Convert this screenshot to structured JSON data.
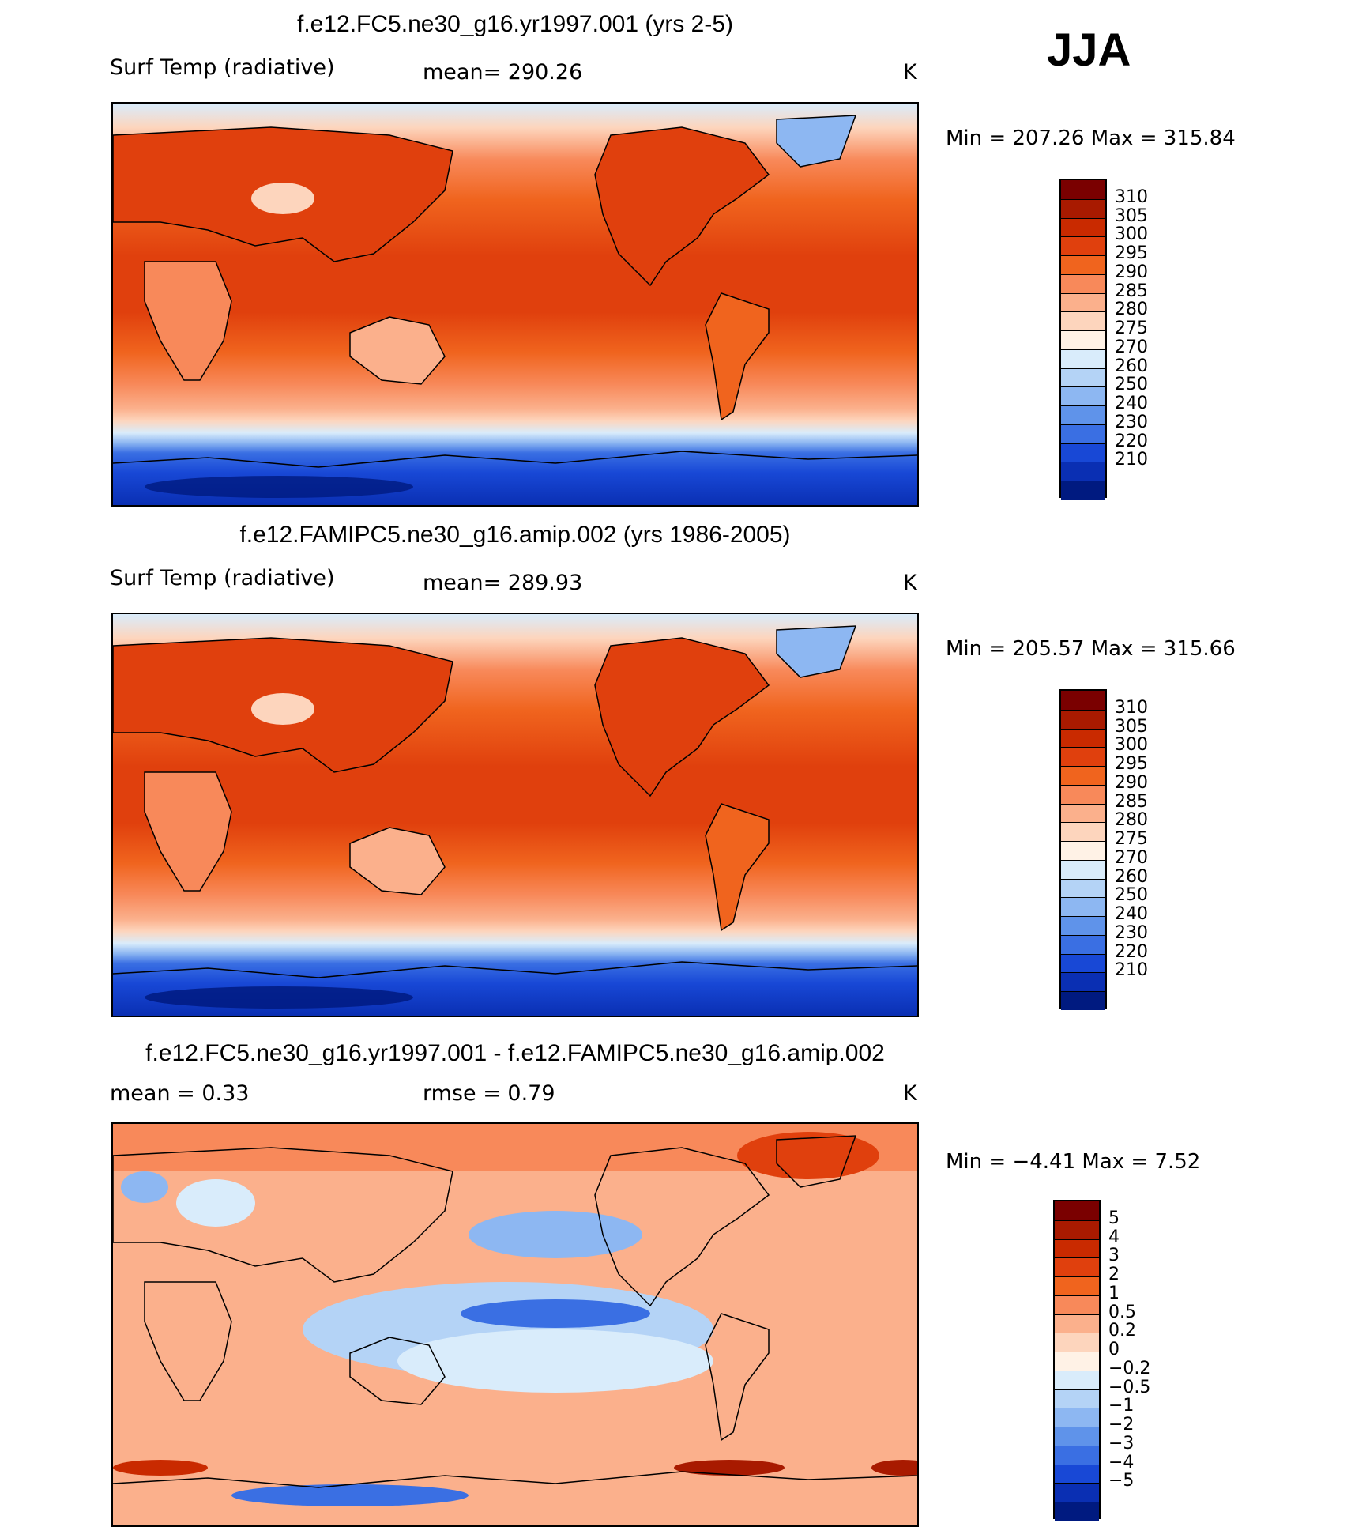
{
  "season": "JJA",
  "chart_data": [
    {
      "type": "heatmap",
      "title": "f.e12.FC5.ne30_g16.yr1997.001 (yrs 2-5)",
      "variable": "Surf Temp (radiative)",
      "stat_text": "mean= 290.26",
      "units": "K",
      "mean": 290.26,
      "min": 207.26,
      "max": 315.84,
      "minmax_text": "Min  =  207.26  Max  =  315.84",
      "levels": [
        "310",
        "305",
        "300",
        "295",
        "290",
        "285",
        "280",
        "275",
        "270",
        "260",
        "250",
        "240",
        "230",
        "220",
        "210"
      ],
      "colors": [
        "#7a0000",
        "#a81a00",
        "#c92a00",
        "#e0400d",
        "#f0641e",
        "#f8895a",
        "#fbb08c",
        "#fdd5bd",
        "#fff2e6",
        "#d9ecfb",
        "#b4d3f6",
        "#8db7f2",
        "#5f93ea",
        "#3a6fe3",
        "#1848d6",
        "#0a2fb3",
        "#001a80"
      ]
    },
    {
      "type": "heatmap",
      "title": "f.e12.FAMIPC5.ne30_g16.amip.002 (yrs 1986-2005)",
      "variable": "Surf Temp (radiative)",
      "stat_text": "mean= 289.93",
      "units": "K",
      "mean": 289.93,
      "min": 205.57,
      "max": 315.66,
      "minmax_text": "Min  =  205.57  Max  =  315.66",
      "levels": [
        "310",
        "305",
        "300",
        "295",
        "290",
        "285",
        "280",
        "275",
        "270",
        "260",
        "250",
        "240",
        "230",
        "220",
        "210"
      ],
      "colors": [
        "#7a0000",
        "#a81a00",
        "#c92a00",
        "#e0400d",
        "#f0641e",
        "#f8895a",
        "#fbb08c",
        "#fdd5bd",
        "#fff2e6",
        "#d9ecfb",
        "#b4d3f6",
        "#8db7f2",
        "#5f93ea",
        "#3a6fe3",
        "#1848d6",
        "#0a2fb3",
        "#001a80"
      ]
    },
    {
      "type": "heatmap",
      "title": "f.e12.FC5.ne30_g16.yr1997.001 - f.e12.FAMIPC5.ne30_g16.amip.002",
      "stat_left": "mean =     0.33",
      "stat_mid": "rmse =     0.79",
      "units": "K",
      "mean": 0.33,
      "rmse": 0.79,
      "min": -4.41,
      "max": 7.52,
      "minmax_text": "Min  =   −4.41  Max  =     7.52",
      "levels": [
        "5",
        "4",
        "3",
        "2",
        "1",
        "0.5",
        "0.2",
        "0",
        "−0.2",
        "−0.5",
        "−1",
        "−2",
        "−3",
        "−4",
        "−5"
      ],
      "colors": [
        "#7a0000",
        "#a81a00",
        "#c92a00",
        "#e0400d",
        "#f0641e",
        "#f8895a",
        "#fbb08c",
        "#fdd5bd",
        "#fff2e6",
        "#d9ecfb",
        "#b4d3f6",
        "#8db7f2",
        "#5f93ea",
        "#3a6fe3",
        "#1848d6",
        "#0a2fb3",
        "#001a80"
      ]
    }
  ]
}
